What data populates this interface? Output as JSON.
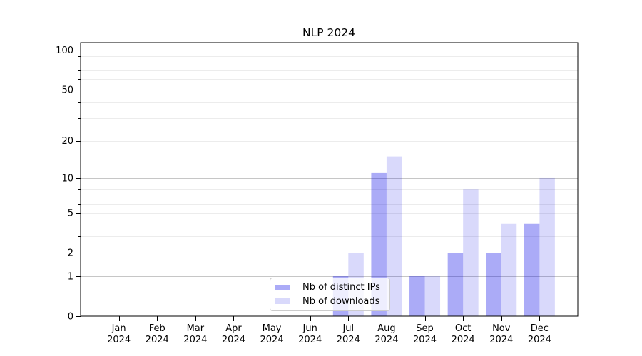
{
  "chart": {
    "title": "NLP 2024"
  },
  "chart_data": {
    "type": "bar",
    "title": "NLP 2024",
    "categories": [
      "Jan 2024",
      "Feb 2024",
      "Mar 2024",
      "Apr 2024",
      "May 2024",
      "Jun 2024",
      "Jul 2024",
      "Aug 2024",
      "Sep 2024",
      "Oct 2024",
      "Nov 2024",
      "Dec 2024"
    ],
    "categories_line1": [
      "Jan",
      "Feb",
      "Mar",
      "Apr",
      "May",
      "Jun",
      "Jul",
      "Aug",
      "Sep",
      "Oct",
      "Nov",
      "Dec"
    ],
    "categories_line2": "2024",
    "series": [
      {
        "name": "Nb of distinct IPs",
        "color": "rgba(0,0,230,0.33)",
        "values": [
          0,
          0,
          0,
          0,
          0,
          0,
          1,
          11,
          1,
          2,
          2,
          4
        ]
      },
      {
        "name": "Nb of downloads",
        "color": "rgba(0,0,230,0.15)",
        "values": [
          0,
          0,
          0,
          0,
          0,
          0,
          2,
          15,
          1,
          8,
          4,
          10
        ]
      }
    ],
    "xlabel": "",
    "ylabel": "",
    "yscale": "log10(1+y)",
    "ylim": [
      0,
      114
    ],
    "y_ticks": [
      0,
      1,
      2,
      5,
      10,
      20,
      50,
      100
    ],
    "y_tick_labels": [
      "0",
      "1",
      "2",
      "5",
      "10",
      "20",
      "50",
      "100"
    ],
    "y_major_gridlines": [
      1,
      10,
      100
    ],
    "y_minor_gridlines": [
      2,
      3,
      4,
      5,
      6,
      7,
      8,
      9,
      20,
      30,
      40,
      50,
      60,
      70,
      80,
      90
    ],
    "grid": "horizontal",
    "legend_position": "lower center"
  },
  "colors": {
    "background": "#ffffff",
    "axis": "#000000",
    "major_grid": "#c6c6c6",
    "minor_grid": "#ececec",
    "text": "#000000"
  }
}
